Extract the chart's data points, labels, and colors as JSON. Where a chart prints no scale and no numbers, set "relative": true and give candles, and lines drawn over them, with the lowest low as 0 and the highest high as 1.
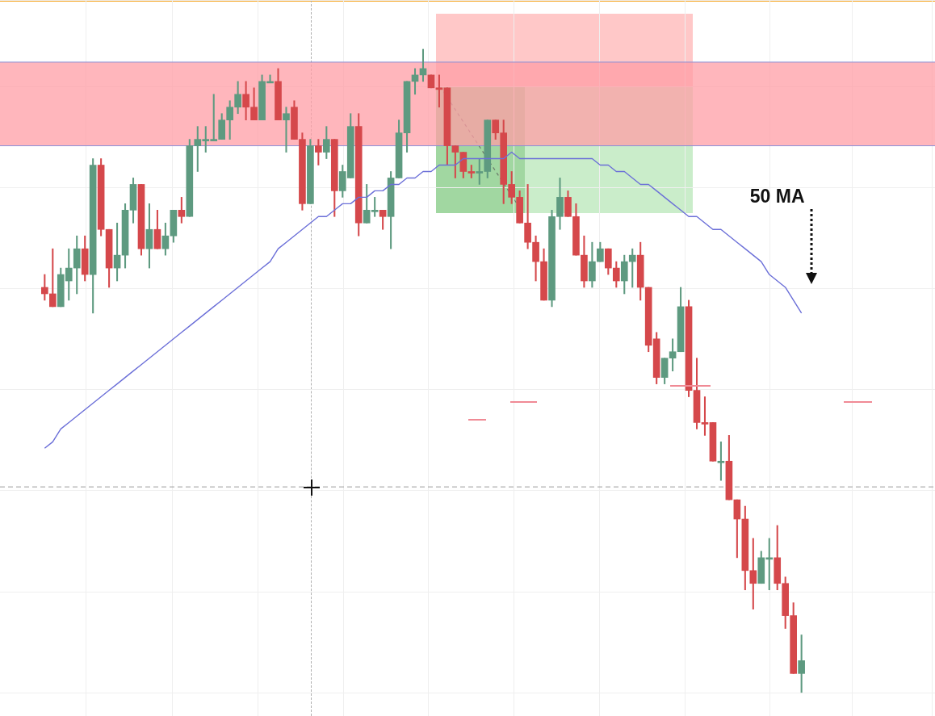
{
  "chart_data": {
    "type": "candlestick",
    "relative": true,
    "grid": true,
    "legend": false,
    "marker": "none",
    "categories": [
      null,
      null,
      null,
      null,
      null,
      null,
      null,
      null,
      null,
      null,
      null,
      null,
      null,
      null,
      null,
      null,
      null,
      null,
      null,
      null,
      null,
      null,
      null,
      null,
      null,
      null,
      null,
      null,
      null,
      null,
      null,
      null,
      null,
      null,
      null,
      null,
      null,
      null,
      null,
      null,
      null,
      null,
      null,
      null,
      null,
      null,
      null,
      null,
      null,
      null,
      null,
      null,
      null,
      null,
      null,
      null,
      null,
      null,
      null,
      null,
      null,
      null,
      null,
      null,
      null,
      null,
      null,
      null,
      null,
      null,
      null,
      null,
      null,
      null,
      null,
      null,
      null,
      null,
      null,
      null,
      null,
      null,
      null,
      null,
      null,
      null,
      null,
      null,
      null,
      null,
      null,
      null,
      null,
      null,
      null
    ],
    "bands": [
      {
        "axis": "y",
        "from": 0.85,
        "to": 0.98,
        "color": "#ff9ea6"
      }
    ],
    "ref_lines": [
      {
        "axis": "y",
        "value": 0.32,
        "color": "#9a9a9a",
        "line_style": "dashed"
      },
      {
        "axis": "y",
        "value": 0.98,
        "color": "#8c8fd6",
        "line_style": "solid"
      },
      {
        "axis": "y",
        "value": 0.85,
        "color": "#8c8fd6",
        "line_style": "solid"
      }
    ],
    "series": [
      {
        "ohlc": [
          [
            0.63,
            0.65,
            0.61,
            0.62
          ],
          [
            0.62,
            0.69,
            0.6,
            0.6
          ],
          [
            0.6,
            0.66,
            0.6,
            0.65
          ],
          [
            0.64,
            0.69,
            0.61,
            0.66
          ],
          [
            0.66,
            0.71,
            0.62,
            0.69
          ],
          [
            0.69,
            0.71,
            0.64,
            0.65
          ],
          [
            0.65,
            0.83,
            0.59,
            0.82
          ],
          [
            0.82,
            0.83,
            0.71,
            0.72
          ],
          [
            0.72,
            0.72,
            0.63,
            0.66
          ],
          [
            0.66,
            0.73,
            0.64,
            0.68
          ],
          [
            0.68,
            0.76,
            0.66,
            0.75
          ],
          [
            0.75,
            0.8,
            0.73,
            0.79
          ],
          [
            0.79,
            0.79,
            0.68,
            0.69
          ],
          [
            0.69,
            0.76,
            0.66,
            0.72
          ],
          [
            0.72,
            0.75,
            0.69,
            0.69
          ],
          [
            0.69,
            0.73,
            0.68,
            0.71
          ],
          [
            0.71,
            0.75,
            0.7,
            0.75
          ],
          [
            0.75,
            0.77,
            0.73,
            0.74
          ],
          [
            0.74,
            0.86,
            0.74,
            0.85
          ],
          [
            0.85,
            0.88,
            0.81,
            0.86
          ],
          [
            0.86,
            0.88,
            0.84,
            0.86
          ],
          [
            0.86,
            0.93,
            0.86,
            0.86
          ],
          [
            0.86,
            0.9,
            0.86,
            0.89
          ],
          [
            0.89,
            0.92,
            0.86,
            0.91
          ],
          [
            0.91,
            0.95,
            0.9,
            0.93
          ],
          [
            0.93,
            0.95,
            0.89,
            0.91
          ],
          [
            0.91,
            0.94,
            0.89,
            0.89
          ],
          [
            0.89,
            0.96,
            0.89,
            0.95
          ],
          [
            0.95,
            0.96,
            0.95,
            0.95
          ],
          [
            0.95,
            0.97,
            0.89,
            0.89
          ],
          [
            0.89,
            0.91,
            0.84,
            0.9
          ],
          [
            0.91,
            0.92,
            0.86,
            0.86
          ],
          [
            0.86,
            0.87,
            0.75,
            0.76
          ],
          [
            0.76,
            0.86,
            0.76,
            0.85
          ],
          [
            0.85,
            0.86,
            0.82,
            0.84
          ],
          [
            0.84,
            0.88,
            0.83,
            0.86
          ],
          [
            0.86,
            0.86,
            0.74,
            0.78
          ],
          [
            0.78,
            0.82,
            0.77,
            0.81
          ],
          [
            0.8,
            0.9,
            0.8,
            0.88
          ],
          [
            0.88,
            0.9,
            0.71,
            0.73
          ],
          [
            0.73,
            0.79,
            0.73,
            0.75
          ],
          [
            0.75,
            0.77,
            0.74,
            0.75
          ],
          [
            0.75,
            0.75,
            0.72,
            0.74
          ],
          [
            0.74,
            0.81,
            0.69,
            0.8
          ],
          [
            0.8,
            0.89,
            0.8,
            0.87
          ],
          [
            0.87,
            0.95,
            0.84,
            0.95
          ],
          [
            0.95,
            0.97,
            0.93,
            0.96
          ],
          [
            0.96,
            1,
            0.95,
            0.97
          ],
          [
            0.96,
            0.96,
            0.94,
            0.94
          ],
          [
            0.94,
            0.96,
            0.91,
            0.94
          ],
          [
            0.94,
            0.94,
            0.82,
            0.85
          ],
          [
            0.85,
            0.85,
            0.8,
            0.84
          ],
          [
            0.84,
            0.84,
            0.8,
            0.81
          ],
          [
            0.81,
            0.82,
            0.8,
            0.81
          ],
          [
            0.81,
            0.83,
            0.79,
            0.81
          ],
          [
            0.81,
            0.89,
            0.8,
            0.89
          ],
          [
            0.89,
            0.89,
            0.86,
            0.87
          ],
          [
            0.87,
            0.89,
            0.76,
            0.79
          ],
          [
            0.79,
            0.81,
            0.76,
            0.77
          ],
          [
            0.77,
            0.78,
            0.73,
            0.73
          ],
          [
            0.73,
            0.79,
            0.69,
            0.7
          ],
          [
            0.7,
            0.71,
            0.64,
            0.67
          ],
          [
            0.67,
            0.69,
            0.61,
            0.61
          ],
          [
            0.61,
            0.75,
            0.6,
            0.74
          ],
          [
            0.74,
            0.8,
            0.72,
            0.77
          ],
          [
            0.77,
            0.78,
            0.74,
            0.74
          ],
          [
            0.74,
            0.76,
            0.68,
            0.68
          ],
          [
            0.68,
            0.71,
            0.63,
            0.64
          ],
          [
            0.64,
            0.7,
            0.63,
            0.67
          ],
          [
            0.67,
            0.7,
            0.67,
            0.69
          ],
          [
            0.69,
            0.69,
            0.65,
            0.66
          ],
          [
            0.66,
            0.67,
            0.63,
            0.64
          ],
          [
            0.64,
            0.68,
            0.62,
            0.67
          ],
          [
            0.67,
            0.69,
            0.63,
            0.68
          ],
          [
            0.68,
            0.7,
            0.61,
            0.63
          ],
          [
            0.63,
            0.63,
            0.53,
            0.54
          ],
          [
            0.55,
            0.56,
            0.48,
            0.49
          ],
          [
            0.49,
            0.52,
            0.48,
            0.52
          ],
          [
            0.52,
            0.55,
            0.5,
            0.53
          ],
          [
            0.53,
            0.63,
            0.53,
            0.6
          ],
          [
            0.6,
            0.61,
            0.46,
            0.47
          ],
          [
            0.47,
            0.52,
            0.41,
            0.42
          ],
          [
            0.42,
            0.46,
            0.4,
            0.42
          ],
          [
            0.42,
            0.42,
            0.36,
            0.36
          ],
          [
            0.36,
            0.39,
            0.33,
            0.36
          ],
          [
            0.36,
            0.4,
            0.3,
            0.3
          ],
          [
            0.3,
            0.3,
            0.21,
            0.27
          ],
          [
            0.27,
            0.29,
            0.16,
            0.19
          ],
          [
            0.19,
            0.24,
            0.13,
            0.17
          ],
          [
            0.17,
            0.22,
            0.17,
            0.21
          ],
          [
            0.21,
            0.24,
            0.16,
            0.21
          ],
          [
            0.21,
            0.26,
            0.16,
            0.17
          ],
          [
            0.17,
            0.18,
            0.1,
            0.12
          ],
          [
            0.12,
            0.14,
            0.03,
            0.03
          ],
          [
            0.03,
            0.09,
            0,
            0.05
          ]
        ],
        "colors": [
          "#d5484b",
          "#d5484b",
          "#5e9a80",
          "#5e9a80",
          "#5e9a80",
          "#d5484b",
          "#5e9a80",
          "#d5484b",
          "#d5484b",
          "#5e9a80",
          "#5e9a80",
          "#5e9a80",
          "#d5484b",
          "#5e9a80",
          "#d5484b",
          "#5e9a80",
          "#5e9a80",
          "#d5484b",
          "#5e9a80",
          "#5e9a80",
          "#5e9a80",
          "#5e9a80",
          "#5e9a80",
          "#5e9a80",
          "#5e9a80",
          "#d5484b",
          "#d5484b",
          "#5e9a80",
          "#5e9a80",
          "#d5484b",
          "#5e9a80",
          "#d5484b",
          "#d5484b",
          "#5e9a80",
          "#d5484b",
          "#5e9a80",
          "#d5484b",
          "#5e9a80",
          "#5e9a80",
          "#d5484b",
          "#5e9a80",
          "#5e9a80",
          "#d5484b",
          "#5e9a80",
          "#5e9a80",
          "#5e9a80",
          "#5e9a80",
          "#5e9a80",
          "#d5484b",
          "#d5484b",
          "#d5484b",
          "#d5484b",
          "#d5484b",
          "#d5484b",
          "#5e9a80",
          "#5e9a80",
          "#d5484b",
          "#d5484b",
          "#d5484b",
          "#d5484b",
          "#d5484b",
          "#d5484b",
          "#d5484b",
          "#5e9a80",
          "#5e9a80",
          "#d5484b",
          "#d5484b",
          "#d5484b",
          "#5e9a80",
          "#5e9a80",
          "#d5484b",
          "#d5484b",
          "#5e9a80",
          "#5e9a80",
          "#d5484b",
          "#d5484b",
          "#d5484b",
          "#5e9a80",
          "#5e9a80",
          "#5e9a80",
          "#d5484b",
          "#d5484b",
          "#d5484b",
          "#d5484b",
          "#5e9a80",
          "#d5484b",
          "#d5484b",
          "#d5484b",
          "#d5484b",
          "#5e9a80",
          "#5e9a80",
          "#d5484b",
          "#d5484b",
          "#d5484b",
          "#5e9a80"
        ]
      },
      {
        "type": "line",
        "name": "50 MA",
        "color": "#6b6fd8",
        "values": [
          0.38,
          0.39,
          0.41,
          0.42,
          0.43,
          0.44,
          0.45,
          0.46,
          0.47,
          0.48,
          0.49,
          0.5,
          0.51,
          0.52,
          0.53,
          0.54,
          0.55,
          0.56,
          0.57,
          0.58,
          0.59,
          0.6,
          0.61,
          0.62,
          0.63,
          0.64,
          0.65,
          0.66,
          0.67,
          0.69,
          0.7,
          0.71,
          0.72,
          0.73,
          0.74,
          0.74,
          0.75,
          0.76,
          0.76,
          0.77,
          0.77,
          0.78,
          0.78,
          0.79,
          0.79,
          0.8,
          0.8,
          0.81,
          0.81,
          0.82,
          0.82,
          0.82,
          0.83,
          0.83,
          0.83,
          0.83,
          0.83,
          0.83,
          0.84,
          0.83,
          0.83,
          0.83,
          0.83,
          0.83,
          0.83,
          0.83,
          0.83,
          0.83,
          0.83,
          0.82,
          0.82,
          0.81,
          0.81,
          0.8,
          0.79,
          0.79,
          0.78,
          0.77,
          0.76,
          0.75,
          0.74,
          0.74,
          0.73,
          0.72,
          0.72,
          0.71,
          0.7,
          0.69,
          0.68,
          0.67,
          0.65,
          0.64,
          0.63,
          0.61,
          0.59
        ]
      }
    ]
  }
}
